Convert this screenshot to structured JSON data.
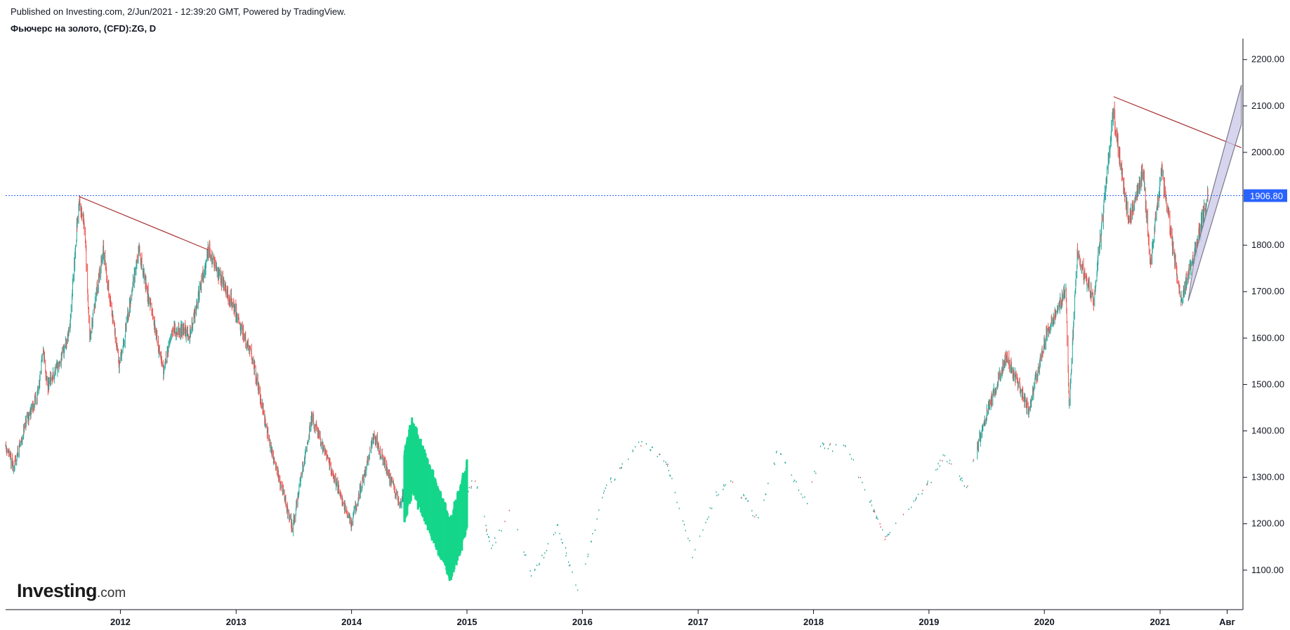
{
  "header": {
    "published": "Published on Investing.com, 2/Jun/2021 - 12:39:20 GMT, Powered by TradingView.",
    "symbol": "Фьючерс на золото, (CFD):ZG, D"
  },
  "logo": {
    "name": "Investing",
    "suffix": ".com"
  },
  "chart_data": {
    "type": "candlestick",
    "title": "Фьючерс на золото, (CFD):ZG, D",
    "x_range": [
      "2011-01-03",
      "2021-09-20"
    ],
    "x_ticks": [
      {
        "label": "2012",
        "date": "2012-01-01"
      },
      {
        "label": "2013",
        "date": "2013-01-01"
      },
      {
        "label": "2014",
        "date": "2014-01-01"
      },
      {
        "label": "2015",
        "date": "2015-01-01"
      },
      {
        "label": "2016",
        "date": "2016-01-01"
      },
      {
        "label": "2017",
        "date": "2017-01-01"
      },
      {
        "label": "2018",
        "date": "2018-01-01"
      },
      {
        "label": "2019",
        "date": "2019-01-01"
      },
      {
        "label": "2020",
        "date": "2020-01-01"
      },
      {
        "label": "2021",
        "date": "2021-01-01"
      },
      {
        "label": "Авг",
        "date": "2021-08-01"
      }
    ],
    "y_range": [
      1015,
      2245
    ],
    "y_ticks": [
      "2200.00",
      "2100.00",
      "2000.00",
      "1800.00",
      "1700.00",
      "1600.00",
      "1500.00",
      "1400.00",
      "1300.00",
      "1200.00",
      "1100.00"
    ],
    "last_price": {
      "value": 1906.8,
      "label": "1906.80"
    },
    "colors": {
      "up": "#26a69a",
      "up_fill": "#15d68a",
      "down": "#ef5350",
      "price_line": "#2962ff",
      "trendline": "#a83232",
      "channel_fill": "#c9c6e8",
      "channel_border": "#7a7a8a"
    },
    "price_path": [
      [
        "2011-01-03",
        1370
      ],
      [
        "2011-01-28",
        1320
      ],
      [
        "2011-03-10",
        1420
      ],
      [
        "2011-04-15",
        1480
      ],
      [
        "2011-05-02",
        1575
      ],
      [
        "2011-05-15",
        1495
      ],
      [
        "2011-06-20",
        1540
      ],
      [
        "2011-07-25",
        1620
      ],
      [
        "2011-08-23",
        1900
      ],
      [
        "2011-09-10",
        1840
      ],
      [
        "2011-09-26",
        1600
      ],
      [
        "2011-11-08",
        1790
      ],
      [
        "2011-12-29",
        1540
      ],
      [
        "2012-02-28",
        1790
      ],
      [
        "2012-05-16",
        1530
      ],
      [
        "2012-06-15",
        1620
      ],
      [
        "2012-08-10",
        1610
      ],
      [
        "2012-10-05",
        1790
      ],
      [
        "2012-11-20",
        1720
      ],
      [
        "2012-12-28",
        1660
      ],
      [
        "2013-02-20",
        1560
      ],
      [
        "2013-04-15",
        1380
      ],
      [
        "2013-06-28",
        1190
      ],
      [
        "2013-08-28",
        1430
      ],
      [
        "2013-12-31",
        1200
      ],
      [
        "2014-03-14",
        1390
      ],
      [
        "2014-06-03",
        1240
      ],
      [
        "2014-07-10",
        1340
      ],
      [
        "2014-11-07",
        1140
      ],
      [
        "2015-01-22",
        1300
      ],
      [
        "2015-03-17",
        1145
      ],
      [
        "2015-05-18",
        1230
      ],
      [
        "2015-07-24",
        1080
      ],
      [
        "2015-10-14",
        1190
      ],
      [
        "2015-12-17",
        1050
      ],
      [
        "2016-03-10",
        1270
      ],
      [
        "2016-07-06",
        1375
      ],
      [
        "2016-09-20",
        1330
      ],
      [
        "2016-12-15",
        1125
      ],
      [
        "2017-02-27",
        1260
      ],
      [
        "2017-04-17",
        1295
      ],
      [
        "2017-07-10",
        1205
      ],
      [
        "2017-09-08",
        1355
      ],
      [
        "2017-12-12",
        1240
      ],
      [
        "2018-01-25",
        1365
      ],
      [
        "2018-04-11",
        1365
      ],
      [
        "2018-08-16",
        1165
      ],
      [
        "2018-12-31",
        1285
      ],
      [
        "2019-02-20",
        1345
      ],
      [
        "2019-05-01",
        1270
      ],
      [
        "2019-06-25",
        1425
      ],
      [
        "2019-09-04",
        1560
      ],
      [
        "2019-11-12",
        1445
      ],
      [
        "2020-01-08",
        1610
      ],
      [
        "2020-03-09",
        1705
      ],
      [
        "2020-03-19",
        1455
      ],
      [
        "2020-04-14",
        1780
      ],
      [
        "2020-06-05",
        1680
      ],
      [
        "2020-08-06",
        2085
      ],
      [
        "2020-09-24",
        1850
      ],
      [
        "2020-11-09",
        1960
      ],
      [
        "2020-11-30",
        1760
      ],
      [
        "2021-01-06",
        1960
      ],
      [
        "2021-03-08",
        1680
      ],
      [
        "2021-04-20",
        1780
      ],
      [
        "2021-06-01",
        1910
      ]
    ],
    "trendlines": [
      {
        "from": [
          "2011-08-23",
          1905
        ],
        "to": [
          "2012-10-05",
          1790
        ]
      },
      {
        "from": [
          "2020-08-07",
          2120
        ],
        "to": [
          "2021-09-15",
          2010
        ]
      }
    ],
    "channel": {
      "upper": {
        "from": [
          "2021-04-20",
          1775
        ],
        "to": [
          "2021-09-15",
          2145
        ]
      },
      "lower": {
        "from": [
          "2021-03-31",
          1680
        ],
        "to": [
          "2021-09-15",
          2060
        ]
      }
    }
  }
}
